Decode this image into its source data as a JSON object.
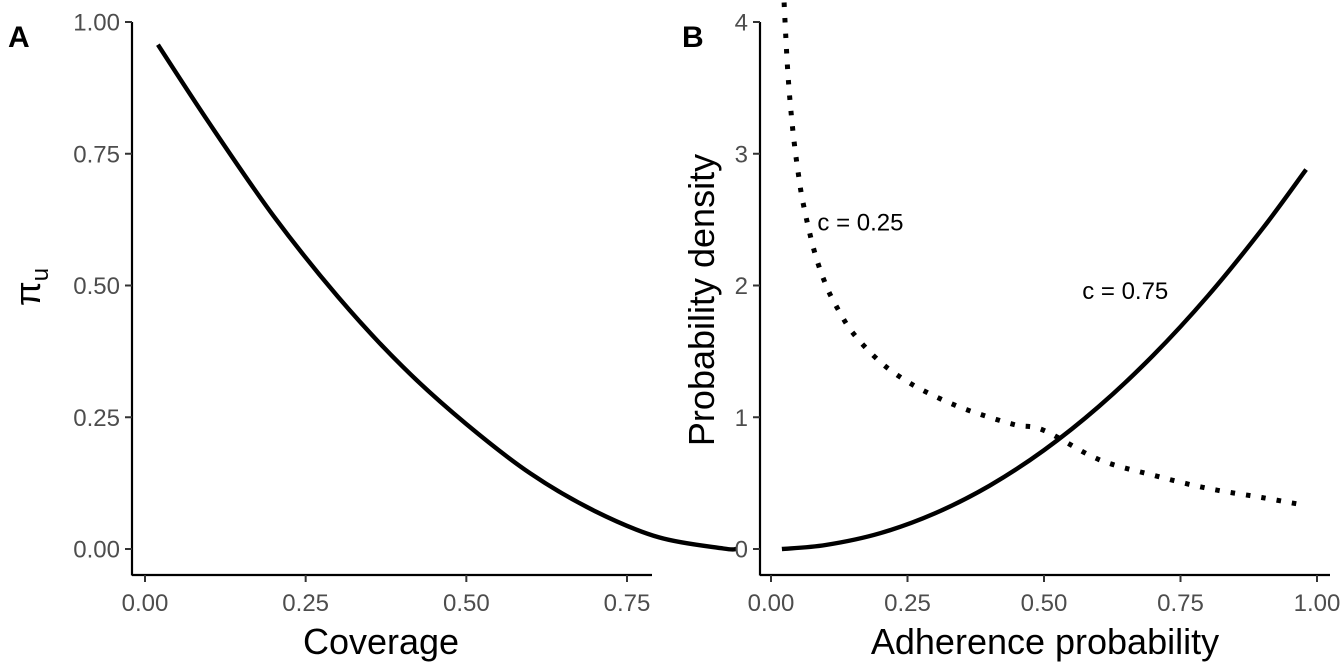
{
  "colors": {
    "line": "#000000",
    "tick_text": "#4d4d4d",
    "background": "#ffffff"
  },
  "chart_data": [
    {
      "type": "line",
      "panel_label": "A",
      "xlabel": "Coverage",
      "ylabel_symbol": "π",
      "ylabel_subscript": "u",
      "xlim": [
        0.0,
        0.95
      ],
      "ylim": [
        0.0,
        1.0
      ],
      "xticks": [
        0.0,
        0.25,
        0.5,
        0.75
      ],
      "xtick_labels": [
        "0.00",
        "0.25",
        "0.50",
        "0.75"
      ],
      "yticks": [
        0.0,
        0.25,
        0.5,
        0.75,
        1.0
      ],
      "ytick_labels": [
        "0.00",
        "0.25",
        "0.50",
        "0.75",
        "1.00"
      ],
      "grid": false,
      "legend": "none",
      "series": [
        {
          "style": "solid",
          "x": [
            0.02,
            0.1,
            0.2,
            0.3,
            0.4,
            0.5,
            0.6,
            0.7,
            0.8,
            0.9,
            0.92
          ],
          "y": [
            0.957,
            0.808,
            0.632,
            0.479,
            0.347,
            0.237,
            0.143,
            0.072,
            0.022,
            0.001,
            0.0
          ]
        }
      ]
    },
    {
      "type": "line",
      "panel_label": "B",
      "xlabel": "Adherence probability",
      "ylabel": "Probability density",
      "xlim": [
        0.0,
        1.0
      ],
      "ylim": [
        0.0,
        4.7
      ],
      "xticks": [
        0.0,
        0.25,
        0.5,
        0.75,
        1.0
      ],
      "xtick_labels": [
        "0.00",
        "0.25",
        "0.50",
        "0.75",
        "1.00"
      ],
      "yticks": [
        0,
        1,
        2,
        3,
        4
      ],
      "ytick_labels": [
        "0",
        "1",
        "2",
        "3",
        "4"
      ],
      "grid": false,
      "legend": "none",
      "series": [
        {
          "style": "dotted",
          "x": [
            0.02,
            0.03,
            0.04,
            0.05,
            0.06,
            0.08,
            0.1,
            0.12,
            0.15,
            0.2,
            0.25,
            0.3,
            0.35,
            0.4,
            0.45,
            0.5,
            0.6,
            0.7,
            0.8,
            0.9,
            0.98
          ],
          "y": [
            4.5,
            3.67,
            3.18,
            2.85,
            2.6,
            2.25,
            2.01,
            1.84,
            1.64,
            1.42,
            1.27,
            1.16,
            1.07,
            1.0,
            0.94,
            0.9,
            0.68,
            0.56,
            0.46,
            0.39,
            0.33
          ]
        },
        {
          "style": "solid",
          "x": [
            0.02,
            0.1,
            0.2,
            0.3,
            0.4,
            0.5,
            0.6,
            0.7,
            0.8,
            0.9,
            0.98
          ],
          "y": [
            0.0,
            0.03,
            0.12,
            0.27,
            0.48,
            0.75,
            1.08,
            1.47,
            1.92,
            2.43,
            2.88
          ]
        }
      ],
      "annotations": [
        {
          "text": "c = 0.25",
          "x": 0.085,
          "y": 2.48
        },
        {
          "text": "c = 0.75",
          "x": 0.57,
          "y": 1.96
        }
      ]
    }
  ]
}
